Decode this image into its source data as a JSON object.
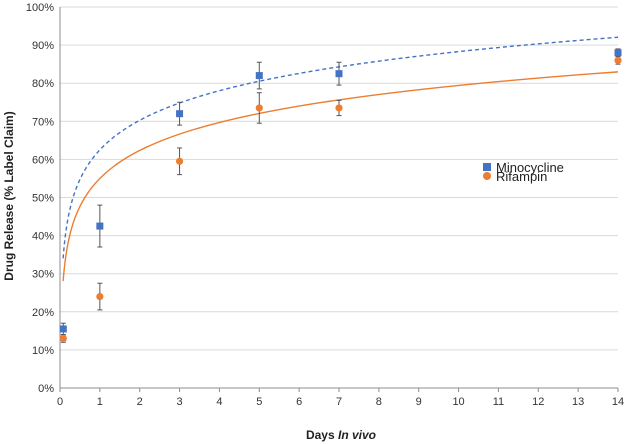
{
  "chart_data": {
    "type": "scatter",
    "title": "",
    "xlabel_prefix": "Days ",
    "xlabel_italic": "In vivo",
    "ylabel": "Drug Release (% Label Claim)",
    "xlim": [
      0,
      14
    ],
    "ylim": [
      0,
      100
    ],
    "x_ticks": [
      0,
      1,
      2,
      3,
      4,
      5,
      6,
      7,
      8,
      9,
      10,
      11,
      12,
      13,
      14
    ],
    "y_ticks": [
      0,
      10,
      20,
      30,
      40,
      50,
      60,
      70,
      80,
      90,
      100
    ],
    "y_tick_labels": [
      "0%",
      "10%",
      "20%",
      "30%",
      "40%",
      "50%",
      "60%",
      "70%",
      "80%",
      "90%",
      "100%"
    ],
    "legend_position": "right",
    "series": [
      {
        "name": "Minocycline",
        "marker": "square",
        "color": "#4472C4",
        "trendline": {
          "type": "logarithmic",
          "style": "dashed",
          "a": 62.5,
          "b": 11.2
        },
        "points": [
          {
            "x": 0.083,
            "y": 15.5,
            "err": 1.5
          },
          {
            "x": 1,
            "y": 42.5,
            "err": 5.5
          },
          {
            "x": 3,
            "y": 72.0,
            "err": 3.0
          },
          {
            "x": 5,
            "y": 82.0,
            "err": 3.5
          },
          {
            "x": 7,
            "y": 82.5,
            "err": 3.0
          },
          {
            "x": 14,
            "y": 88.0,
            "err": 1.0
          }
        ]
      },
      {
        "name": "Rifampin",
        "marker": "circle",
        "color": "#ED7D31",
        "trendline": {
          "type": "logarithmic",
          "style": "solid",
          "a": 55.0,
          "b": 10.6
        },
        "points": [
          {
            "x": 0.083,
            "y": 13.0,
            "err": 1.0
          },
          {
            "x": 1,
            "y": 24.0,
            "err": 3.5
          },
          {
            "x": 3,
            "y": 59.5,
            "err": 3.5
          },
          {
            "x": 5,
            "y": 73.5,
            "err": 4.0
          },
          {
            "x": 7,
            "y": 73.5,
            "err": 2.0
          },
          {
            "x": 14,
            "y": 86.0,
            "err": 1.0
          }
        ]
      }
    ]
  }
}
